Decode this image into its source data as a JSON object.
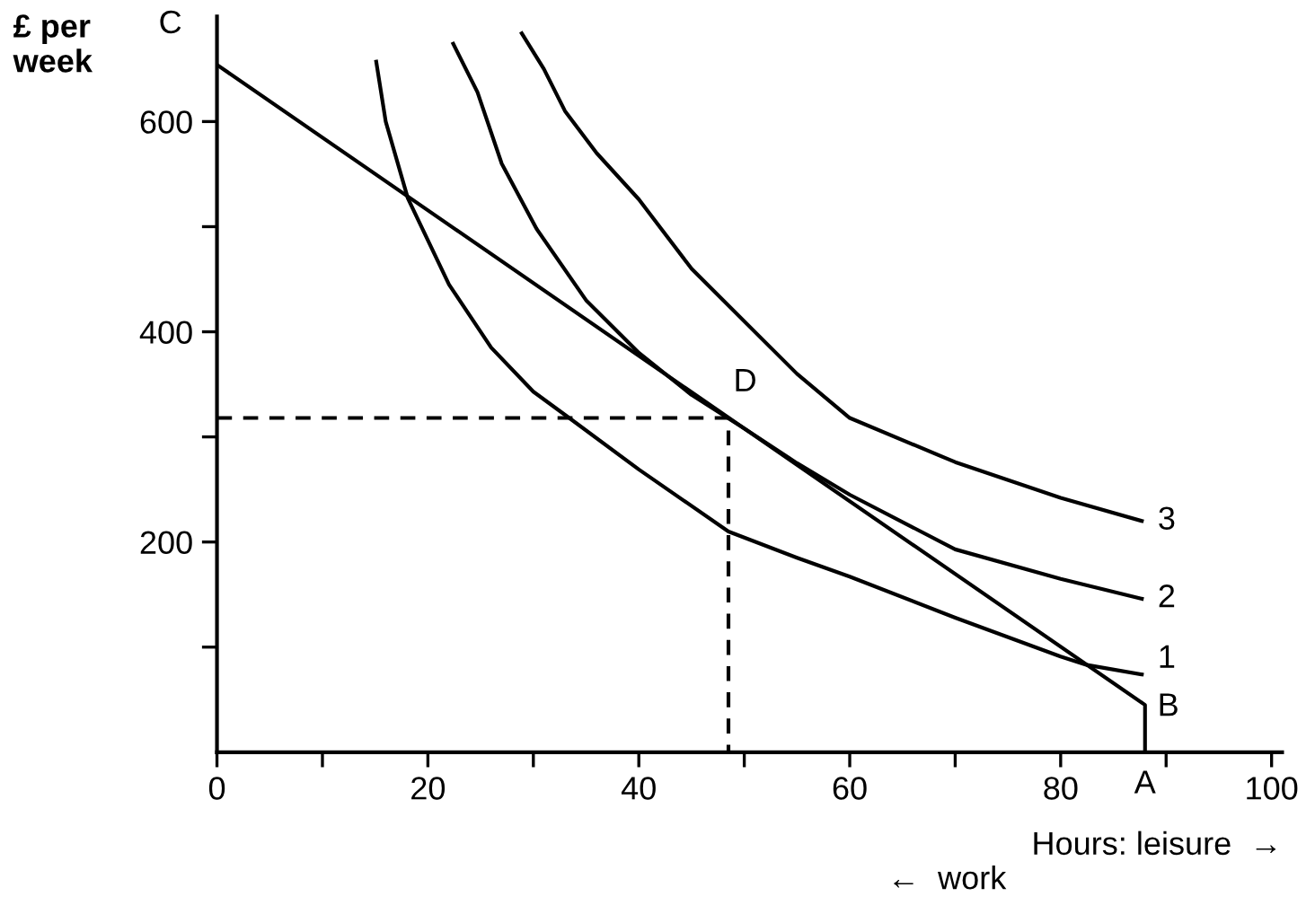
{
  "chart_data": {
    "type": "line",
    "ylabel": "£ per\nweek",
    "xlabel": "Hours: leisure  →",
    "xlim": [
      0,
      101
    ],
    "ylim": [
      0,
      700
    ],
    "xticks": [
      0,
      {
        "value": 10,
        "label": null
      },
      20,
      {
        "value": 30,
        "label": null
      },
      40,
      {
        "value": 50,
        "label": null
      },
      60,
      {
        "value": 70,
        "label": null
      },
      80,
      {
        "value": 90,
        "label": null
      },
      100
    ],
    "yticks": [
      {
        "value": 100,
        "label": null
      },
      200,
      {
        "value": 300,
        "label": null
      },
      400,
      {
        "value": 500,
        "label": null
      },
      600
    ],
    "grid": false,
    "legend": false,
    "marker": "none",
    "series": [
      {
        "color": "#000000",
        "x": [
          0,
          88,
          88
        ],
        "values": [
          654,
          45,
          0
        ]
      },
      {
        "color": "#000000",
        "line_style": "dashed",
        "x": [
          0,
          48.5,
          48.5
        ],
        "values": [
          318,
          318,
          0
        ]
      },
      {
        "name": "1",
        "color": "#000000",
        "x": [
          15.1,
          16,
          18.1,
          22,
          26,
          30,
          33.4,
          40,
          48.5,
          55,
          60,
          70,
          80,
          82.5,
          87.7
        ],
        "values": [
          657,
          600,
          527,
          445,
          385,
          343,
          318,
          269,
          210,
          185,
          167,
          128,
          91,
          83,
          74
        ]
      },
      {
        "name": "2",
        "color": "#000000",
        "x": [
          22.4,
          24.7,
          27,
          30.3,
          35,
          40,
          45,
          50,
          55,
          60,
          70,
          80,
          87.7
        ],
        "values": [
          674,
          628,
          560,
          498,
          430,
          380,
          340,
          308,
          275,
          245,
          193,
          165,
          146
        ]
      },
      {
        "name": "3",
        "color": "#000000",
        "x": [
          28.9,
          31,
          33,
          36,
          40,
          45,
          50.6,
          55,
          60,
          70,
          80,
          87.7
        ],
        "values": [
          684,
          650,
          610,
          570,
          526,
          460,
          404,
          360,
          318,
          276,
          242,
          220
        ]
      }
    ],
    "annotations": [
      {
        "text": "C",
        "x": 0,
        "y": 654
      },
      {
        "text": "D",
        "x": 48.5,
        "y": 318
      },
      {
        "text": "B",
        "x": 88,
        "y": 45
      },
      {
        "text": "A",
        "x": 88,
        "y": 0
      },
      "←  work"
    ]
  }
}
